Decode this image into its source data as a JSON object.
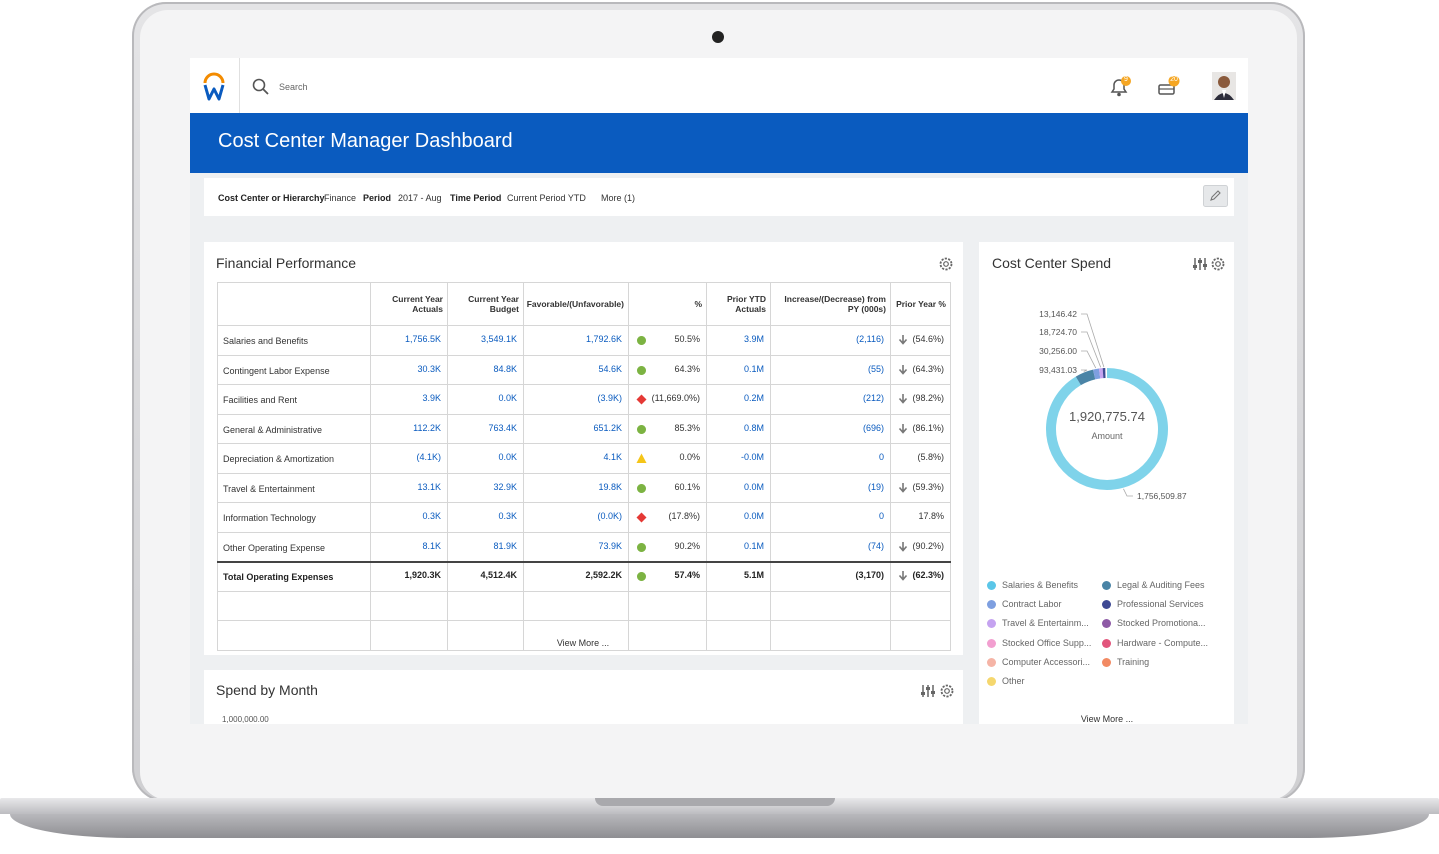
{
  "top_bar": {
    "search_placeholder": "Search",
    "notifications_badge": "9",
    "inbox_badge": "20"
  },
  "header": {
    "title": "Cost Center Manager Dashboard"
  },
  "filters": [
    {
      "label": "Cost Center or Hierarchy",
      "value": "Finance"
    },
    {
      "label": "Period",
      "value": "2017 - Aug"
    },
    {
      "label": "Time Period",
      "value": "Current Period YTD"
    }
  ],
  "filters_more": "More (1)",
  "financial_performance": {
    "title": "Financial Performance",
    "columns": [
      "Current Year Actuals",
      "Current Year Budget",
      "Favorable/(Unfavorable)",
      "%",
      "Prior YTD Actuals",
      "Increase/(Decrease) from PY (000s)",
      "Prior Year %"
    ],
    "rows": [
      {
        "cells": [
          "Salaries and Benefits",
          "1,756.5K",
          "3,549.1K",
          "1,792.6K",
          "50.5%",
          "3.9M",
          "(2,116)",
          "(54.6%)"
        ],
        "status_color": "#7cb342",
        "trend_down": true
      },
      {
        "cells": [
          "Contingent Labor Expense",
          "30.3K",
          "84.8K",
          "54.6K",
          "64.3%",
          "0.1M",
          "(55)",
          "(64.3%)"
        ],
        "status_color": "#7cb342",
        "trend_down": true
      },
      {
        "cells": [
          "Facilities and Rent",
          "3.9K",
          "0.0K",
          "(3.9K)",
          "(11,669.0%)",
          "0.2M",
          "(212)",
          "(98.2%)"
        ],
        "status_color": "#e53935",
        "trend_down": true
      },
      {
        "cells": [
          "General & Administrative",
          "112.2K",
          "763.4K",
          "651.2K",
          "85.3%",
          "0.8M",
          "(696)",
          "(86.1%)"
        ],
        "status_color": "#7cb342",
        "trend_down": true
      },
      {
        "cells": [
          "Depreciation & Amortization",
          "(4.1K)",
          "0.0K",
          "4.1K",
          "0.0%",
          "-0.0M",
          "0",
          "(5.8%)"
        ],
        "status_color": "#f5c518",
        "trend_down": false
      },
      {
        "cells": [
          "Travel & Entertainment",
          "13.1K",
          "32.9K",
          "19.8K",
          "60.1%",
          "0.0M",
          "(19)",
          "(59.3%)"
        ],
        "status_color": "#7cb342",
        "trend_down": true
      },
      {
        "cells": [
          "Information Technology",
          "0.3K",
          "0.3K",
          "(0.0K)",
          "(17.8%)",
          "0.0M",
          "0",
          "17.8%"
        ],
        "status_color": "#e53935",
        "trend_down": false
      },
      {
        "cells": [
          "Other Operating Expense",
          "8.1K",
          "81.9K",
          "73.9K",
          "90.2%",
          "0.1M",
          "(74)",
          "(90.2%)"
        ],
        "status_color": "#7cb342",
        "trend_down": true
      },
      {
        "cells": [
          "Total Operating Expenses",
          "1,920.3K",
          "4,512.4K",
          "2,592.2K",
          "57.4%",
          "5.1M",
          "(3,170)",
          "(62.3%)"
        ],
        "status_color": "#7cb342",
        "trend_down": true
      }
    ],
    "view_more": "View More ..."
  },
  "spend_by_month": {
    "title": "Spend by Month",
    "first_axis_label": "1,000,000.00"
  },
  "cost_center_spend": {
    "title": "Cost Center Spend",
    "total": {
      "value": 1920775.74,
      "label": "1,920,775.74"
    },
    "total_caption": "Amount",
    "slices": {
      "values": [
        1756509.87,
        93431.03,
        30256.0,
        18724.7,
        13146.42
      ],
      "value_labels": [
        "1,756,509.87",
        "93,431.03",
        "30,256.00",
        "18,724.70",
        "13,146.42"
      ],
      "colors": [
        "#7fd3ea",
        "#4a84a6",
        "#7e9fe0",
        "#c5a3f0",
        "#3f4a94"
      ]
    },
    "legend": [
      {
        "name": "Salaries & Benefits",
        "color": "#5bc6e8"
      },
      {
        "name": "Contract Labor",
        "color": "#7e9fe0"
      },
      {
        "name": "Travel & Entertainm...",
        "color": "#c5a3f0"
      },
      {
        "name": "Stocked Office Supp...",
        "color": "#f29fd0"
      },
      {
        "name": "Computer Accessori...",
        "color": "#f5b4a6"
      },
      {
        "name": "Other",
        "color": "#f5d76e"
      },
      {
        "name": "Legal & Auditing Fees",
        "color": "#4a84a6"
      },
      {
        "name": "Professional Services",
        "color": "#3f4a94"
      },
      {
        "name": "Stocked Promotiona...",
        "color": "#8e5aa6"
      },
      {
        "name": "Hardware - Compute...",
        "color": "#e2557c"
      },
      {
        "name": "Training",
        "color": "#f28a63"
      }
    ],
    "view_more": "View More ..."
  }
}
